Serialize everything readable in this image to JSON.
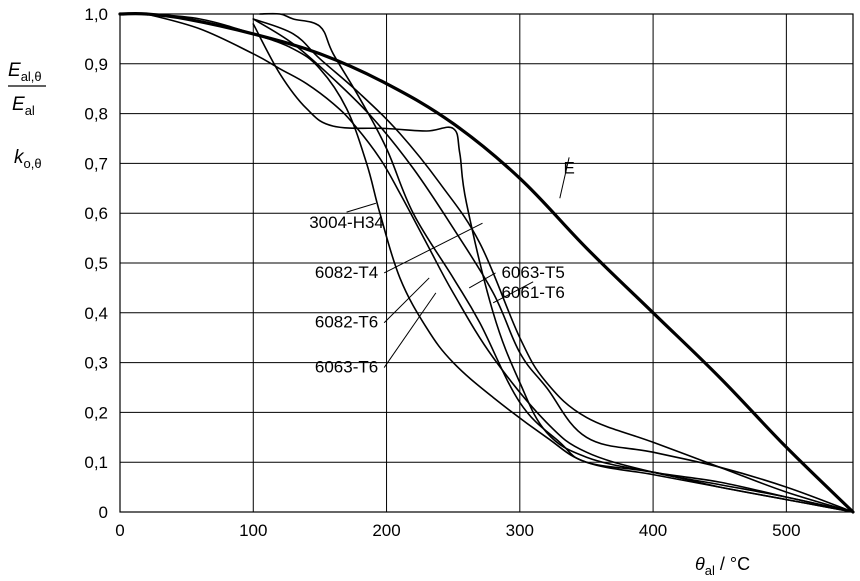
{
  "chart_data": {
    "type": "line",
    "xlabel": {
      "symbol": "θ",
      "sub": "al",
      "unit": " / °C"
    },
    "ylabel": {
      "numerator": {
        "symbol": "E",
        "sub": "al,θ"
      },
      "denominator": {
        "symbol": "E",
        "sub": "al"
      },
      "second": {
        "symbol": "k",
        "sub": "o,θ"
      }
    },
    "xlim": [
      0,
      550
    ],
    "ylim": [
      0,
      1.0
    ],
    "x_ticks": [
      0,
      100,
      200,
      300,
      400,
      500
    ],
    "x_tick_labels": [
      "0",
      "100",
      "200",
      "300",
      "400",
      "500"
    ],
    "y_ticks": [
      0,
      0.1,
      0.2,
      0.3,
      0.4,
      0.5,
      0.6,
      0.7,
      0.8,
      0.9,
      1.0
    ],
    "y_tick_labels": [
      "0",
      "0,1",
      "0,2",
      "0,3",
      "0,4",
      "0,5",
      "0,6",
      "0,7",
      "0,8",
      "0,9",
      "1,0"
    ],
    "grid": true,
    "series": [
      {
        "name": "E",
        "bold": true,
        "x": [
          0,
          20,
          50,
          100,
          150,
          200,
          250,
          300,
          350,
          400,
          450,
          500,
          550
        ],
        "y": [
          1.0,
          1.0,
          0.99,
          0.96,
          0.92,
          0.86,
          0.78,
          0.67,
          0.53,
          0.4,
          0.27,
          0.13,
          0.0
        ]
      },
      {
        "name": "3004-H34",
        "bold": false,
        "x": [
          20,
          60,
          100,
          130,
          150,
          170,
          185,
          195,
          210,
          230,
          250,
          280,
          320,
          350,
          400,
          450,
          500,
          550
        ],
        "y": [
          1.0,
          0.99,
          0.96,
          0.93,
          0.89,
          0.81,
          0.7,
          0.6,
          0.47,
          0.37,
          0.3,
          0.23,
          0.15,
          0.1,
          0.075,
          0.05,
          0.025,
          0.0
        ]
      },
      {
        "name": "6082-T4",
        "bold": false,
        "x": [
          20,
          60,
          100,
          120,
          140,
          160,
          175,
          195,
          210,
          230,
          250,
          280,
          320,
          350,
          400,
          450,
          500,
          550
        ],
        "y": [
          1.0,
          0.97,
          0.92,
          0.89,
          0.86,
          0.82,
          0.78,
          0.71,
          0.64,
          0.54,
          0.44,
          0.31,
          0.18,
          0.12,
          0.08,
          0.055,
          0.03,
          0.0
        ]
      },
      {
        "name": "6082-T6",
        "bold": false,
        "x": [
          100,
          120,
          140,
          160,
          200,
          230,
          250,
          255,
          260,
          280,
          300,
          320,
          350,
          400,
          450,
          500,
          550
        ],
        "y": [
          0.98,
          0.88,
          0.81,
          0.775,
          0.77,
          0.765,
          0.77,
          0.72,
          0.62,
          0.4,
          0.26,
          0.16,
          0.11,
          0.08,
          0.06,
          0.03,
          0.0
        ]
      },
      {
        "name": "6063-T6",
        "bold": false,
        "x": [
          105,
          120,
          130,
          150,
          160,
          180,
          200,
          220,
          250,
          270,
          300,
          330,
          350,
          400,
          450,
          500,
          550
        ],
        "y": [
          1.0,
          1.0,
          0.99,
          0.975,
          0.92,
          0.83,
          0.73,
          0.6,
          0.47,
          0.38,
          0.22,
          0.14,
          0.1,
          0.08,
          0.05,
          0.025,
          0.0
        ]
      },
      {
        "name": "6063-T5",
        "bold": false,
        "x": [
          100,
          130,
          150,
          180,
          210,
          240,
          270,
          300,
          320,
          350,
          400,
          450,
          500,
          550
        ],
        "y": [
          0.99,
          0.96,
          0.91,
          0.84,
          0.76,
          0.66,
          0.54,
          0.35,
          0.26,
          0.19,
          0.14,
          0.09,
          0.04,
          0.0
        ]
      },
      {
        "name": "6061-T6",
        "bold": false,
        "x": [
          100,
          130,
          160,
          190,
          220,
          250,
          280,
          300,
          320,
          350,
          400,
          450,
          500,
          550
        ],
        "y": [
          0.99,
          0.94,
          0.87,
          0.79,
          0.69,
          0.57,
          0.44,
          0.32,
          0.25,
          0.15,
          0.12,
          0.09,
          0.05,
          0.0
        ]
      }
    ],
    "annotations": [
      {
        "text": "E",
        "series": "E",
        "anchor": [
          330,
          0.63
        ],
        "label_pos": [
          337,
          0.68
        ]
      },
      {
        "text": "3004-H34",
        "series": "3004-H34",
        "anchor": [
          192,
          0.62
        ],
        "label_pos": [
          170,
          0.57
        ]
      },
      {
        "text": "6082-T4",
        "series": "6082-T4",
        "anchor": [
          272,
          0.58
        ],
        "label_pos": [
          170,
          0.47
        ]
      },
      {
        "text": "6082-T6",
        "series": "6082-T6",
        "anchor": [
          232,
          0.47
        ],
        "label_pos": [
          170,
          0.37
        ]
      },
      {
        "text": "6063-T6",
        "series": "6063-T6",
        "anchor": [
          237,
          0.44
        ],
        "label_pos": [
          170,
          0.28
        ]
      },
      {
        "text": "6063-T5",
        "series": "6063-T5",
        "anchor": [
          262,
          0.45
        ],
        "label_pos": [
          310,
          0.47
        ]
      },
      {
        "text": "6061-T6",
        "series": "6061-T6",
        "anchor": [
          280,
          0.42
        ],
        "label_pos": [
          310,
          0.43
        ]
      }
    ]
  }
}
